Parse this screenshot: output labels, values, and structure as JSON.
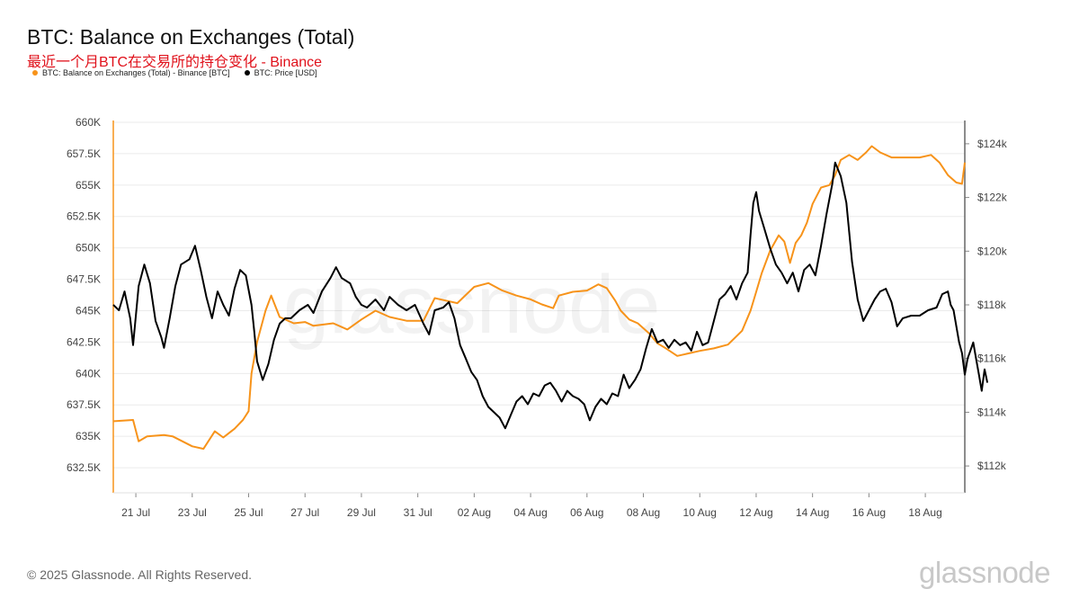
{
  "title": "BTC: Balance on Exchanges (Total)",
  "subtitle": "最近一个月BTC在交易所的持仓变化 - Binance",
  "legend": {
    "series1": "BTC: Balance on Exchanges (Total) - Binance [BTC]",
    "series2": "BTC: Price [USD]"
  },
  "watermark": "glassnode",
  "footer": "© 2025 Glassnode. All Rights Reserved.",
  "brand": "glassnode",
  "colors": {
    "balance": "#f7931a",
    "price": "#000000",
    "grid": "#ebebeb"
  },
  "chart_data": {
    "type": "line",
    "x_ticks": [
      "21 Jul",
      "23 Jul",
      "25 Jul",
      "27 Jul",
      "29 Jul",
      "31 Jul",
      "02 Aug",
      "04 Aug",
      "06 Aug",
      "08 Aug",
      "10 Aug",
      "12 Aug",
      "14 Aug",
      "16 Aug",
      "18 Aug"
    ],
    "xlim": [
      20.2,
      50.4
    ],
    "y_left": {
      "ticks": [
        "632.5K",
        "635K",
        "637.5K",
        "640K",
        "642.5K",
        "645K",
        "647.5K",
        "650K",
        "652.5K",
        "655K",
        "657.5K",
        "660K"
      ],
      "ylim": [
        630500,
        660000
      ]
    },
    "y_right": {
      "ticks": [
        "$112k",
        "$114k",
        "$116k",
        "$118k",
        "$120k",
        "$122k",
        "$124k"
      ],
      "ylim": [
        111000,
        124800
      ]
    },
    "series": [
      {
        "name": "BTC: Balance on Exchanges (Total) - Binance [BTC]",
        "axis": "left",
        "color": "#f7931a",
        "points": [
          [
            20.2,
            636200
          ],
          [
            20.9,
            636300
          ],
          [
            21.1,
            634600
          ],
          [
            21.4,
            635000
          ],
          [
            22.0,
            635100
          ],
          [
            22.3,
            635000
          ],
          [
            23.0,
            634200
          ],
          [
            23.4,
            634000
          ],
          [
            23.8,
            635400
          ],
          [
            24.1,
            634900
          ],
          [
            24.5,
            635600
          ],
          [
            24.8,
            636300
          ],
          [
            25.0,
            637000
          ],
          [
            25.1,
            640000
          ],
          [
            25.3,
            642500
          ],
          [
            25.6,
            645000
          ],
          [
            25.8,
            646200
          ],
          [
            26.1,
            644500
          ],
          [
            26.6,
            644000
          ],
          [
            27.0,
            644100
          ],
          [
            27.3,
            643800
          ],
          [
            28.0,
            644000
          ],
          [
            28.5,
            643500
          ],
          [
            29.0,
            644300
          ],
          [
            29.5,
            645000
          ],
          [
            30.0,
            644500
          ],
          [
            30.6,
            644200
          ],
          [
            31.2,
            644200
          ],
          [
            31.6,
            646000
          ],
          [
            32.0,
            645800
          ],
          [
            32.4,
            645600
          ],
          [
            33.0,
            646900
          ],
          [
            33.5,
            647200
          ],
          [
            34.0,
            646600
          ],
          [
            34.5,
            646200
          ],
          [
            35.0,
            645900
          ],
          [
            35.4,
            645500
          ],
          [
            35.8,
            645200
          ],
          [
            36.0,
            646200
          ],
          [
            36.5,
            646500
          ],
          [
            37.0,
            646600
          ],
          [
            37.4,
            647100
          ],
          [
            37.7,
            646800
          ],
          [
            38.0,
            645800
          ],
          [
            38.2,
            645000
          ],
          [
            38.5,
            644300
          ],
          [
            38.8,
            644000
          ],
          [
            39.2,
            643200
          ],
          [
            39.5,
            642400
          ],
          [
            39.8,
            642000
          ],
          [
            40.2,
            641400
          ],
          [
            40.6,
            641600
          ],
          [
            41.0,
            641800
          ],
          [
            41.5,
            642000
          ],
          [
            42.0,
            642300
          ],
          [
            42.5,
            643400
          ],
          [
            42.8,
            645000
          ],
          [
            43.0,
            646500
          ],
          [
            43.2,
            648000
          ],
          [
            43.5,
            649800
          ],
          [
            43.8,
            651000
          ],
          [
            44.0,
            650500
          ],
          [
            44.2,
            648800
          ],
          [
            44.4,
            650400
          ],
          [
            44.6,
            651000
          ],
          [
            44.8,
            652000
          ],
          [
            45.0,
            653500
          ],
          [
            45.3,
            654800
          ],
          [
            45.6,
            655000
          ],
          [
            45.8,
            655800
          ],
          [
            46.0,
            657000
          ],
          [
            46.3,
            657400
          ],
          [
            46.6,
            657000
          ],
          [
            46.9,
            657600
          ],
          [
            47.1,
            658100
          ],
          [
            47.4,
            657600
          ],
          [
            47.8,
            657200
          ],
          [
            48.3,
            657200
          ],
          [
            48.8,
            657200
          ],
          [
            49.2,
            657400
          ],
          [
            49.5,
            656800
          ],
          [
            49.8,
            655800
          ],
          [
            50.1,
            655200
          ],
          [
            50.3,
            655100
          ],
          [
            50.4,
            656800
          ]
        ]
      },
      {
        "name": "BTC: Price [USD]",
        "axis": "right",
        "color": "#000000",
        "points": [
          [
            20.2,
            118000
          ],
          [
            20.4,
            117800
          ],
          [
            20.6,
            118500
          ],
          [
            20.8,
            117500
          ],
          [
            20.9,
            116500
          ],
          [
            21.1,
            118700
          ],
          [
            21.3,
            119500
          ],
          [
            21.5,
            118800
          ],
          [
            21.7,
            117400
          ],
          [
            21.9,
            116800
          ],
          [
            22.0,
            116400
          ],
          [
            22.2,
            117500
          ],
          [
            22.4,
            118700
          ],
          [
            22.6,
            119500
          ],
          [
            22.9,
            119700
          ],
          [
            23.1,
            120200
          ],
          [
            23.3,
            119300
          ],
          [
            23.5,
            118300
          ],
          [
            23.7,
            117500
          ],
          [
            23.9,
            118500
          ],
          [
            24.1,
            118000
          ],
          [
            24.3,
            117600
          ],
          [
            24.5,
            118600
          ],
          [
            24.7,
            119300
          ],
          [
            24.9,
            119100
          ],
          [
            25.1,
            118000
          ],
          [
            25.2,
            117000
          ],
          [
            25.3,
            115900
          ],
          [
            25.5,
            115200
          ],
          [
            25.7,
            115800
          ],
          [
            25.9,
            116700
          ],
          [
            26.1,
            117300
          ],
          [
            26.3,
            117500
          ],
          [
            26.5,
            117500
          ],
          [
            26.8,
            117800
          ],
          [
            27.1,
            118000
          ],
          [
            27.3,
            117700
          ],
          [
            27.6,
            118500
          ],
          [
            27.9,
            119000
          ],
          [
            28.1,
            119400
          ],
          [
            28.3,
            119000
          ],
          [
            28.6,
            118800
          ],
          [
            28.8,
            118300
          ],
          [
            29.0,
            118000
          ],
          [
            29.2,
            117900
          ],
          [
            29.5,
            118200
          ],
          [
            29.8,
            117800
          ],
          [
            30.0,
            118300
          ],
          [
            30.3,
            118000
          ],
          [
            30.6,
            117800
          ],
          [
            30.9,
            118000
          ],
          [
            31.2,
            117300
          ],
          [
            31.4,
            116900
          ],
          [
            31.6,
            117800
          ],
          [
            31.9,
            117900
          ],
          [
            32.1,
            118100
          ],
          [
            32.3,
            117500
          ],
          [
            32.5,
            116500
          ],
          [
            32.7,
            116000
          ],
          [
            32.9,
            115500
          ],
          [
            33.1,
            115200
          ],
          [
            33.3,
            114600
          ],
          [
            33.5,
            114200
          ],
          [
            33.7,
            114000
          ],
          [
            33.9,
            113800
          ],
          [
            34.1,
            113400
          ],
          [
            34.3,
            113900
          ],
          [
            34.5,
            114400
          ],
          [
            34.7,
            114600
          ],
          [
            34.9,
            114300
          ],
          [
            35.1,
            114700
          ],
          [
            35.3,
            114600
          ],
          [
            35.5,
            115000
          ],
          [
            35.7,
            115100
          ],
          [
            35.9,
            114800
          ],
          [
            36.1,
            114400
          ],
          [
            36.3,
            114800
          ],
          [
            36.5,
            114600
          ],
          [
            36.7,
            114500
          ],
          [
            36.9,
            114300
          ],
          [
            37.1,
            113700
          ],
          [
            37.3,
            114200
          ],
          [
            37.5,
            114500
          ],
          [
            37.7,
            114300
          ],
          [
            37.9,
            114700
          ],
          [
            38.1,
            114600
          ],
          [
            38.3,
            115400
          ],
          [
            38.5,
            114900
          ],
          [
            38.7,
            115200
          ],
          [
            38.9,
            115600
          ],
          [
            39.1,
            116400
          ],
          [
            39.3,
            117100
          ],
          [
            39.5,
            116600
          ],
          [
            39.7,
            116700
          ],
          [
            39.9,
            116400
          ],
          [
            40.1,
            116700
          ],
          [
            40.3,
            116500
          ],
          [
            40.5,
            116600
          ],
          [
            40.7,
            116300
          ],
          [
            40.9,
            117000
          ],
          [
            41.1,
            116500
          ],
          [
            41.3,
            116600
          ],
          [
            41.5,
            117400
          ],
          [
            41.7,
            118200
          ],
          [
            41.9,
            118400
          ],
          [
            42.1,
            118700
          ],
          [
            42.3,
            118200
          ],
          [
            42.5,
            118800
          ],
          [
            42.7,
            119200
          ],
          [
            42.8,
            120600
          ],
          [
            42.9,
            121800
          ],
          [
            43.0,
            122200
          ],
          [
            43.1,
            121500
          ],
          [
            43.3,
            120800
          ],
          [
            43.5,
            120100
          ],
          [
            43.7,
            119500
          ],
          [
            43.9,
            119200
          ],
          [
            44.1,
            118800
          ],
          [
            44.3,
            119200
          ],
          [
            44.5,
            118500
          ],
          [
            44.7,
            119300
          ],
          [
            44.9,
            119500
          ],
          [
            45.1,
            119100
          ],
          [
            45.3,
            120200
          ],
          [
            45.5,
            121400
          ],
          [
            45.7,
            122500
          ],
          [
            45.8,
            123300
          ],
          [
            46.0,
            122800
          ],
          [
            46.2,
            121800
          ],
          [
            46.4,
            119600
          ],
          [
            46.6,
            118200
          ],
          [
            46.8,
            117400
          ],
          [
            47.0,
            117800
          ],
          [
            47.2,
            118200
          ],
          [
            47.4,
            118500
          ],
          [
            47.6,
            118600
          ],
          [
            47.8,
            118100
          ],
          [
            48.0,
            117200
          ],
          [
            48.2,
            117500
          ],
          [
            48.5,
            117600
          ],
          [
            48.8,
            117600
          ],
          [
            49.1,
            117800
          ],
          [
            49.4,
            117900
          ],
          [
            49.6,
            118400
          ],
          [
            49.8,
            118500
          ],
          [
            49.9,
            118000
          ],
          [
            50.0,
            117800
          ],
          [
            50.1,
            117200
          ],
          [
            50.2,
            116600
          ],
          [
            50.3,
            116200
          ],
          [
            50.4,
            115400
          ],
          [
            50.5,
            116000
          ],
          [
            50.6,
            116300
          ],
          [
            50.7,
            116600
          ],
          [
            50.8,
            116000
          ],
          [
            50.9,
            115400
          ],
          [
            51.0,
            114800
          ],
          [
            51.1,
            115600
          ],
          [
            51.2,
            115100
          ]
        ]
      }
    ]
  }
}
